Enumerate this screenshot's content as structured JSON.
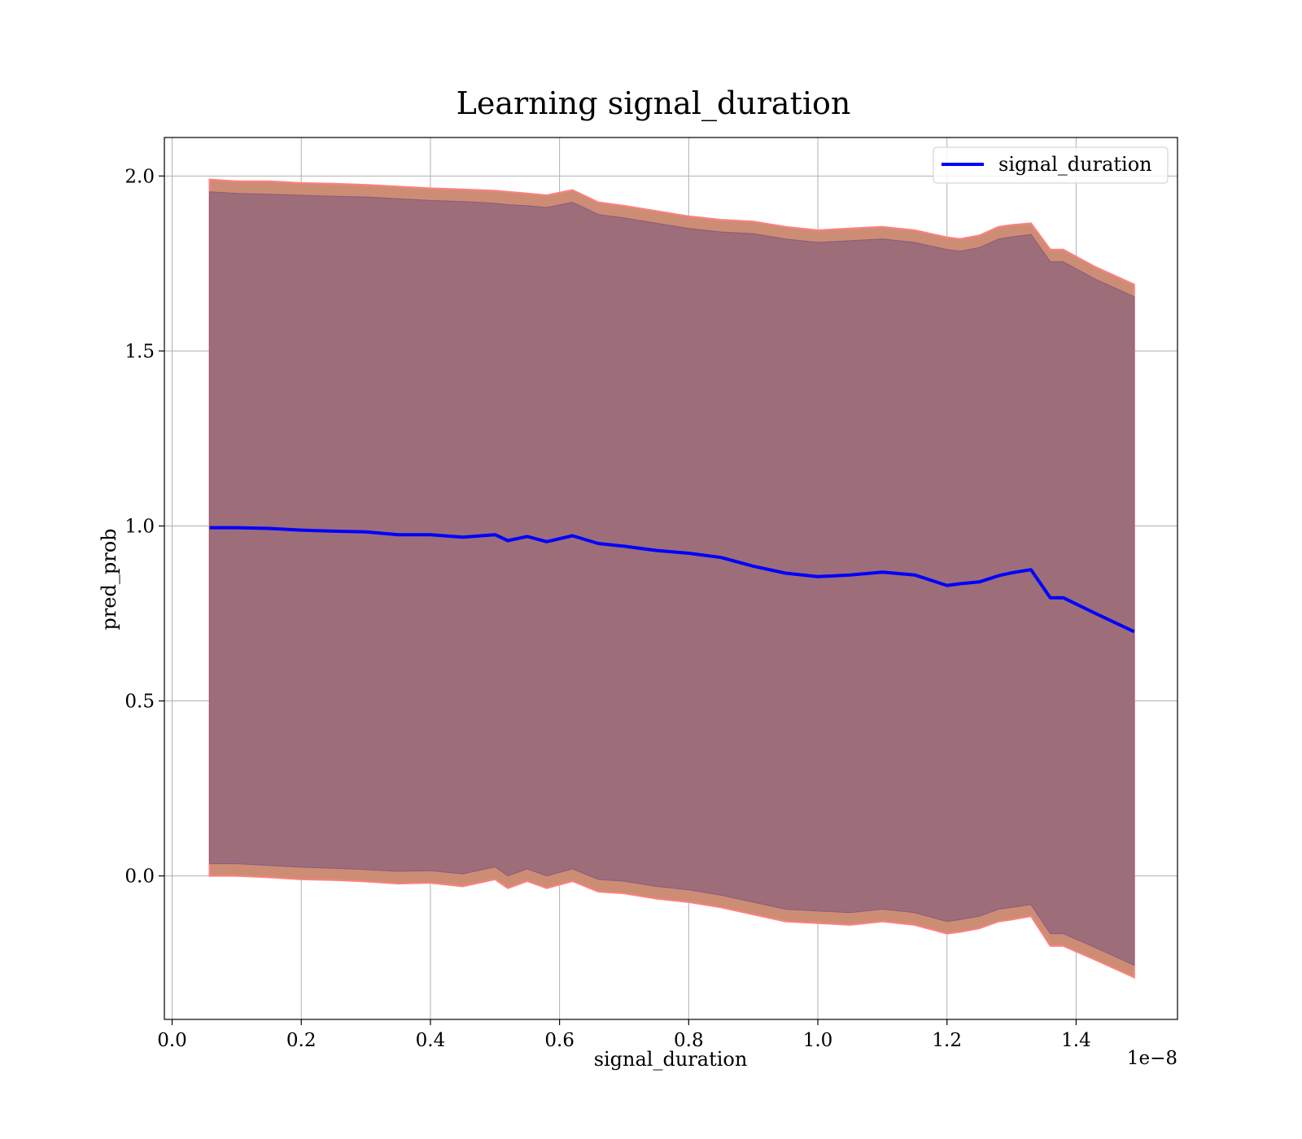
{
  "chart_data": {
    "type": "line",
    "title": "Learning signal_duration",
    "xlabel": "signal_duration",
    "ylabel": "pred_prob",
    "x_offset_label": "1e−8",
    "xlim": [
      -0.012,
      1.557
    ],
    "ylim": [
      -0.41,
      2.11
    ],
    "x_ticks": [
      0.0,
      0.2,
      0.4,
      0.6,
      0.8,
      1.0,
      1.2,
      1.4
    ],
    "x_tick_labels": [
      "0.0",
      "0.2",
      "0.4",
      "0.6",
      "0.8",
      "1.0",
      "1.2",
      "1.4"
    ],
    "y_ticks": [
      0.0,
      0.5,
      1.0,
      1.5,
      2.0
    ],
    "y_tick_labels": [
      "0.0",
      "0.5",
      "1.0",
      "1.5",
      "2.0"
    ],
    "grid": true,
    "legend": {
      "position": "top-right",
      "entries": [
        "signal_duration"
      ]
    },
    "colors": {
      "line": "#0000ff",
      "outer_band": "#cd8d74",
      "outer_band_edge": "#ff8080",
      "inner_band": "#9e6d7a",
      "inner_band_edge": "#8a5a80"
    },
    "series": [
      {
        "name": "signal_duration",
        "x": [
          0.058,
          0.1,
          0.15,
          0.2,
          0.25,
          0.3,
          0.35,
          0.4,
          0.45,
          0.5,
          0.52,
          0.55,
          0.58,
          0.62,
          0.66,
          0.7,
          0.75,
          0.8,
          0.85,
          0.9,
          0.95,
          1.0,
          1.05,
          1.1,
          1.15,
          1.2,
          1.22,
          1.25,
          1.28,
          1.3,
          1.33,
          1.36,
          1.38,
          1.43,
          1.49
        ],
        "y": [
          0.995,
          0.995,
          0.993,
          0.988,
          0.985,
          0.983,
          0.975,
          0.975,
          0.968,
          0.975,
          0.958,
          0.97,
          0.955,
          0.972,
          0.95,
          0.942,
          0.93,
          0.922,
          0.91,
          0.885,
          0.865,
          0.855,
          0.86,
          0.868,
          0.86,
          0.83,
          0.835,
          0.84,
          0.858,
          0.866,
          0.875,
          0.795,
          0.795,
          0.75,
          0.698
        ]
      }
    ],
    "band_outer_upper": [
      1.99,
      1.985,
      1.985,
      1.98,
      1.978,
      1.975,
      1.97,
      1.965,
      1.962,
      1.958,
      1.955,
      1.95,
      1.945,
      1.96,
      1.925,
      1.915,
      1.9,
      1.885,
      1.875,
      1.87,
      1.855,
      1.845,
      1.85,
      1.855,
      1.845,
      1.825,
      1.82,
      1.83,
      1.855,
      1.86,
      1.865,
      1.79,
      1.79,
      1.74,
      1.69
    ],
    "band_outer_lower": [
      0.0,
      0.0,
      -0.004,
      -0.01,
      -0.012,
      -0.016,
      -0.022,
      -0.02,
      -0.03,
      -0.01,
      -0.035,
      -0.015,
      -0.035,
      -0.015,
      -0.045,
      -0.05,
      -0.065,
      -0.075,
      -0.09,
      -0.11,
      -0.13,
      -0.135,
      -0.14,
      -0.13,
      -0.14,
      -0.165,
      -0.16,
      -0.15,
      -0.13,
      -0.125,
      -0.115,
      -0.2,
      -0.2,
      -0.24,
      -0.29
    ],
    "band_inner_upper": [
      1.955,
      1.95,
      1.948,
      1.945,
      1.942,
      1.94,
      1.935,
      1.93,
      1.927,
      1.922,
      1.918,
      1.915,
      1.91,
      1.925,
      1.89,
      1.88,
      1.865,
      1.85,
      1.84,
      1.835,
      1.82,
      1.81,
      1.815,
      1.82,
      1.81,
      1.79,
      1.785,
      1.795,
      1.82,
      1.826,
      1.833,
      1.755,
      1.755,
      1.705,
      1.655
    ],
    "band_inner_lower": [
      0.035,
      0.035,
      0.03,
      0.025,
      0.022,
      0.018,
      0.013,
      0.015,
      0.006,
      0.026,
      0.0,
      0.02,
      0.0,
      0.02,
      -0.01,
      -0.015,
      -0.03,
      -0.04,
      -0.055,
      -0.075,
      -0.095,
      -0.1,
      -0.105,
      -0.095,
      -0.105,
      -0.13,
      -0.125,
      -0.115,
      -0.095,
      -0.09,
      -0.082,
      -0.165,
      -0.165,
      -0.205,
      -0.255
    ]
  }
}
